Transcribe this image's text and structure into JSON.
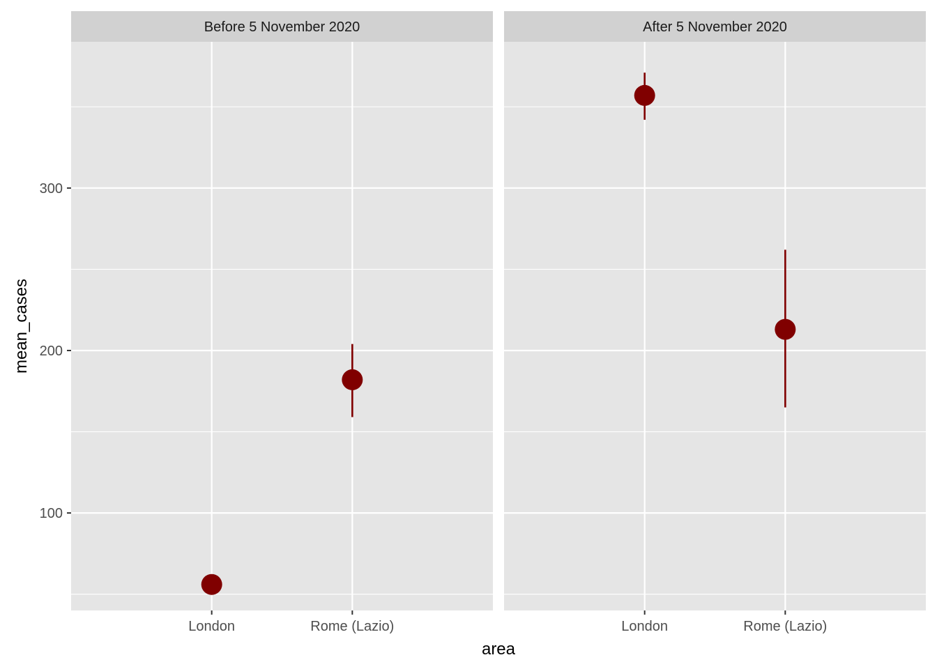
{
  "chart_data": {
    "type": "scatter",
    "geom": "pointrange",
    "xlabel": "area",
    "ylabel": "mean_cases",
    "categories": [
      "London",
      "Rome (Lazio)"
    ],
    "ylim": [
      40,
      390
    ],
    "y_ticks": [
      100,
      200,
      300
    ],
    "grid": true,
    "facets": [
      {
        "label": "Before 5 November 2020",
        "points": [
          {
            "x": "London",
            "y": 56,
            "ymin": 56,
            "ymax": 56
          },
          {
            "x": "Rome (Lazio)",
            "y": 182,
            "ymin": 159,
            "ymax": 204
          }
        ]
      },
      {
        "label": "After 5 November 2020",
        "points": [
          {
            "x": "London",
            "y": 357,
            "ymin": 342,
            "ymax": 371
          },
          {
            "x": "Rome (Lazio)",
            "y": 213,
            "ymin": 165,
            "ymax": 262
          }
        ]
      }
    ],
    "colors": {
      "point": "#800000",
      "panel_background": "#e5e5e5",
      "strip_background": "#d1d1d1",
      "grid": "#ffffff"
    }
  }
}
